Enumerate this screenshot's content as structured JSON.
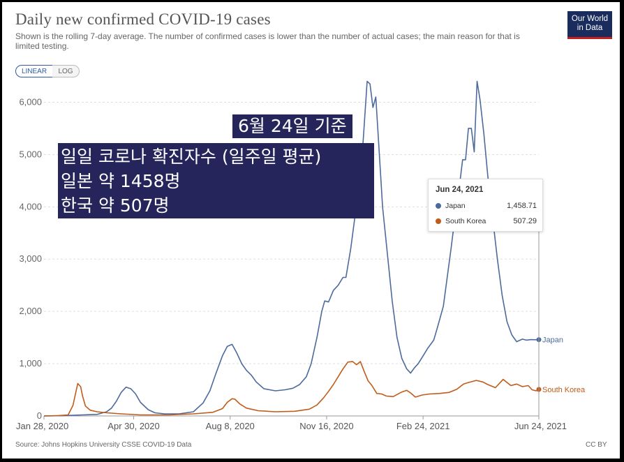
{
  "header": {
    "title": "Daily new confirmed COVID-19 cases",
    "subtitle": "Shown is the rolling 7-day average. The number of confirmed cases is lower than the number of actual cases; the main reason for that is limited testing.",
    "logo_line1": "Our World",
    "logo_line2": "in Data"
  },
  "controls": {
    "linear_label": "LINEAR",
    "log_label": "LOG",
    "selected": "LINEAR"
  },
  "overlay": {
    "line1": "6월 24일 기준",
    "line2": "일일 코로나 확진자수 (일주일 평균)",
    "line3": "일본 약 1458명",
    "line4": "한국 약 507명"
  },
  "tooltip": {
    "date": "Jun 24, 2021",
    "rows": [
      {
        "name": "Japan",
        "value": "1,458.71"
      },
      {
        "name": "South Korea",
        "value": "507.29"
      }
    ]
  },
  "footer": {
    "source": "Source: Johns Hopkins University CSSE COVID-19 Data",
    "license": "CC BY"
  },
  "colors": {
    "japan": "#4c6a9c",
    "south_korea": "#c15b19",
    "grid": "#dddddd",
    "axis_text": "#666666"
  },
  "chart_data": {
    "type": "line",
    "title": "Daily new confirmed COVID-19 cases",
    "xlabel": "",
    "ylabel": "",
    "x_domain_days": [
      0,
      513
    ],
    "ylim": [
      0,
      6500
    ],
    "yticks": [
      0,
      1000,
      2000,
      3000,
      4000,
      5000,
      6000
    ],
    "ytick_labels": [
      "0",
      "1,000",
      "2,000",
      "3,000",
      "4,000",
      "5,000",
      "6,000"
    ],
    "xticks": [
      {
        "day": 0,
        "label": "Jan 28, 2020"
      },
      {
        "day": 93,
        "label": "Apr 30, 2020"
      },
      {
        "day": 193,
        "label": "Aug 8, 2020"
      },
      {
        "day": 293,
        "label": "Nov 16, 2020"
      },
      {
        "day": 393,
        "label": "Feb 24, 2021"
      },
      {
        "day": 513,
        "label": "Jun 24, 2021"
      }
    ],
    "grid": true,
    "legend": "inline-right",
    "series": [
      {
        "name": "Japan",
        "color": "#4c6a9c",
        "points": [
          [
            0,
            0
          ],
          [
            20,
            5
          ],
          [
            40,
            20
          ],
          [
            55,
            30
          ],
          [
            60,
            55
          ],
          [
            65,
            80
          ],
          [
            70,
            150
          ],
          [
            75,
            280
          ],
          [
            80,
            450
          ],
          [
            85,
            550
          ],
          [
            90,
            520
          ],
          [
            95,
            420
          ],
          [
            100,
            260
          ],
          [
            108,
            120
          ],
          [
            115,
            60
          ],
          [
            125,
            40
          ],
          [
            140,
            40
          ],
          [
            155,
            80
          ],
          [
            165,
            250
          ],
          [
            172,
            480
          ],
          [
            178,
            800
          ],
          [
            185,
            1150
          ],
          [
            190,
            1330
          ],
          [
            195,
            1370
          ],
          [
            200,
            1200
          ],
          [
            205,
            1000
          ],
          [
            210,
            870
          ],
          [
            215,
            780
          ],
          [
            220,
            650
          ],
          [
            228,
            520
          ],
          [
            240,
            480
          ],
          [
            250,
            500
          ],
          [
            258,
            530
          ],
          [
            265,
            600
          ],
          [
            272,
            750
          ],
          [
            277,
            1000
          ],
          [
            283,
            1500
          ],
          [
            288,
            2000
          ],
          [
            291,
            2200
          ],
          [
            295,
            2180
          ],
          [
            300,
            2400
          ],
          [
            305,
            2500
          ],
          [
            310,
            2650
          ],
          [
            313,
            2650
          ],
          [
            318,
            3200
          ],
          [
            323,
            3900
          ],
          [
            327,
            4300
          ],
          [
            331,
            5300
          ],
          [
            335,
            6400
          ],
          [
            338,
            6350
          ],
          [
            341,
            5900
          ],
          [
            344,
            6100
          ],
          [
            347,
            5200
          ],
          [
            351,
            4000
          ],
          [
            356,
            3100
          ],
          [
            361,
            2200
          ],
          [
            366,
            1500
          ],
          [
            371,
            1100
          ],
          [
            376,
            900
          ],
          [
            380,
            820
          ],
          [
            384,
            920
          ],
          [
            388,
            1000
          ],
          [
            393,
            1150
          ],
          [
            398,
            1300
          ],
          [
            404,
            1450
          ],
          [
            408,
            1700
          ],
          [
            414,
            2100
          ],
          [
            418,
            2650
          ],
          [
            422,
            3200
          ],
          [
            426,
            3800
          ],
          [
            430,
            4300
          ],
          [
            434,
            4900
          ],
          [
            437,
            4900
          ],
          [
            440,
            5500
          ],
          [
            443,
            5500
          ],
          [
            446,
            5050
          ],
          [
            449,
            6400
          ],
          [
            452,
            6050
          ],
          [
            456,
            5400
          ],
          [
            460,
            4600
          ],
          [
            465,
            3800
          ],
          [
            470,
            3000
          ],
          [
            475,
            2300
          ],
          [
            480,
            1800
          ],
          [
            485,
            1550
          ],
          [
            490,
            1420
          ],
          [
            496,
            1470
          ],
          [
            500,
            1450
          ],
          [
            505,
            1460
          ],
          [
            509,
            1458
          ],
          [
            513,
            1458.71
          ]
        ]
      },
      {
        "name": "South Korea",
        "color": "#c15b19",
        "points": [
          [
            0,
            0
          ],
          [
            15,
            5
          ],
          [
            25,
            20
          ],
          [
            30,
            200
          ],
          [
            33,
            450
          ],
          [
            35,
            620
          ],
          [
            38,
            560
          ],
          [
            40,
            380
          ],
          [
            43,
            190
          ],
          [
            48,
            110
          ],
          [
            55,
            80
          ],
          [
            65,
            60
          ],
          [
            80,
            40
          ],
          [
            100,
            20
          ],
          [
            130,
            20
          ],
          [
            155,
            40
          ],
          [
            175,
            70
          ],
          [
            185,
            140
          ],
          [
            190,
            260
          ],
          [
            195,
            330
          ],
          [
            198,
            320
          ],
          [
            203,
            230
          ],
          [
            210,
            150
          ],
          [
            222,
            100
          ],
          [
            240,
            80
          ],
          [
            260,
            90
          ],
          [
            275,
            130
          ],
          [
            283,
            210
          ],
          [
            290,
            350
          ],
          [
            295,
            470
          ],
          [
            300,
            600
          ],
          [
            305,
            750
          ],
          [
            310,
            900
          ],
          [
            315,
            1030
          ],
          [
            320,
            1040
          ],
          [
            324,
            980
          ],
          [
            328,
            1040
          ],
          [
            332,
            850
          ],
          [
            336,
            670
          ],
          [
            340,
            580
          ],
          [
            345,
            430
          ],
          [
            350,
            420
          ],
          [
            355,
            380
          ],
          [
            362,
            370
          ],
          [
            370,
            450
          ],
          [
            376,
            490
          ],
          [
            380,
            440
          ],
          [
            385,
            360
          ],
          [
            392,
            400
          ],
          [
            400,
            420
          ],
          [
            410,
            430
          ],
          [
            420,
            450
          ],
          [
            428,
            510
          ],
          [
            435,
            610
          ],
          [
            440,
            640
          ],
          [
            448,
            680
          ],
          [
            455,
            650
          ],
          [
            460,
            600
          ],
          [
            468,
            540
          ],
          [
            476,
            700
          ],
          [
            484,
            580
          ],
          [
            490,
            610
          ],
          [
            496,
            560
          ],
          [
            502,
            580
          ],
          [
            506,
            500
          ],
          [
            510,
            480
          ],
          [
            513,
            507.29
          ]
        ]
      }
    ]
  }
}
